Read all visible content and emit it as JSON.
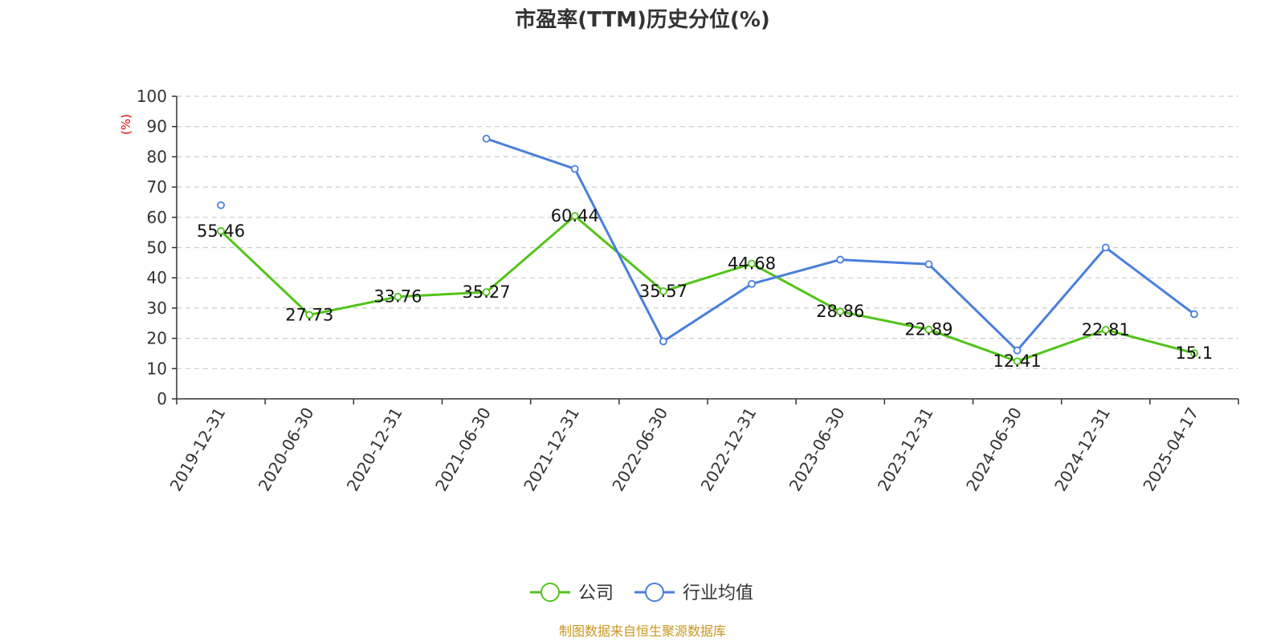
{
  "chart_data": {
    "type": "line",
    "title": "市盈率(TTM)历史分位(%)",
    "y_unit_label": "(%)",
    "ylim": [
      0,
      100
    ],
    "y_ticks": [
      0,
      10,
      20,
      30,
      40,
      50,
      60,
      70,
      80,
      90,
      100
    ],
    "categories": [
      "2019-12-31",
      "2020-06-30",
      "2020-12-31",
      "2021-06-30",
      "2021-12-31",
      "2022-06-30",
      "2022-12-31",
      "2023-06-30",
      "2023-12-31",
      "2024-06-30",
      "2024-12-31",
      "2025-04-17"
    ],
    "grid": true,
    "legend_position": "bottom-center",
    "series": [
      {
        "name": "公司",
        "color": "#52c41a",
        "values": [
          55.46,
          27.73,
          33.76,
          35.27,
          60.44,
          35.57,
          44.68,
          28.86,
          22.89,
          12.41,
          22.81,
          15.1
        ],
        "labels": [
          "55.46",
          "27.73",
          "33.76",
          "35.27",
          "60.44",
          "35.57",
          "44.68",
          "28.86",
          "22.89",
          "12.41",
          "22.81",
          "15.1"
        ],
        "show_labels": true
      },
      {
        "name": "行业均值",
        "color": "#4a7fdc",
        "values": [
          64,
          null,
          null,
          86,
          76,
          19,
          38,
          46,
          44.5,
          16,
          50,
          28
        ],
        "show_labels": false
      }
    ],
    "source_note": "制图数据来自恒生聚源数据库"
  }
}
